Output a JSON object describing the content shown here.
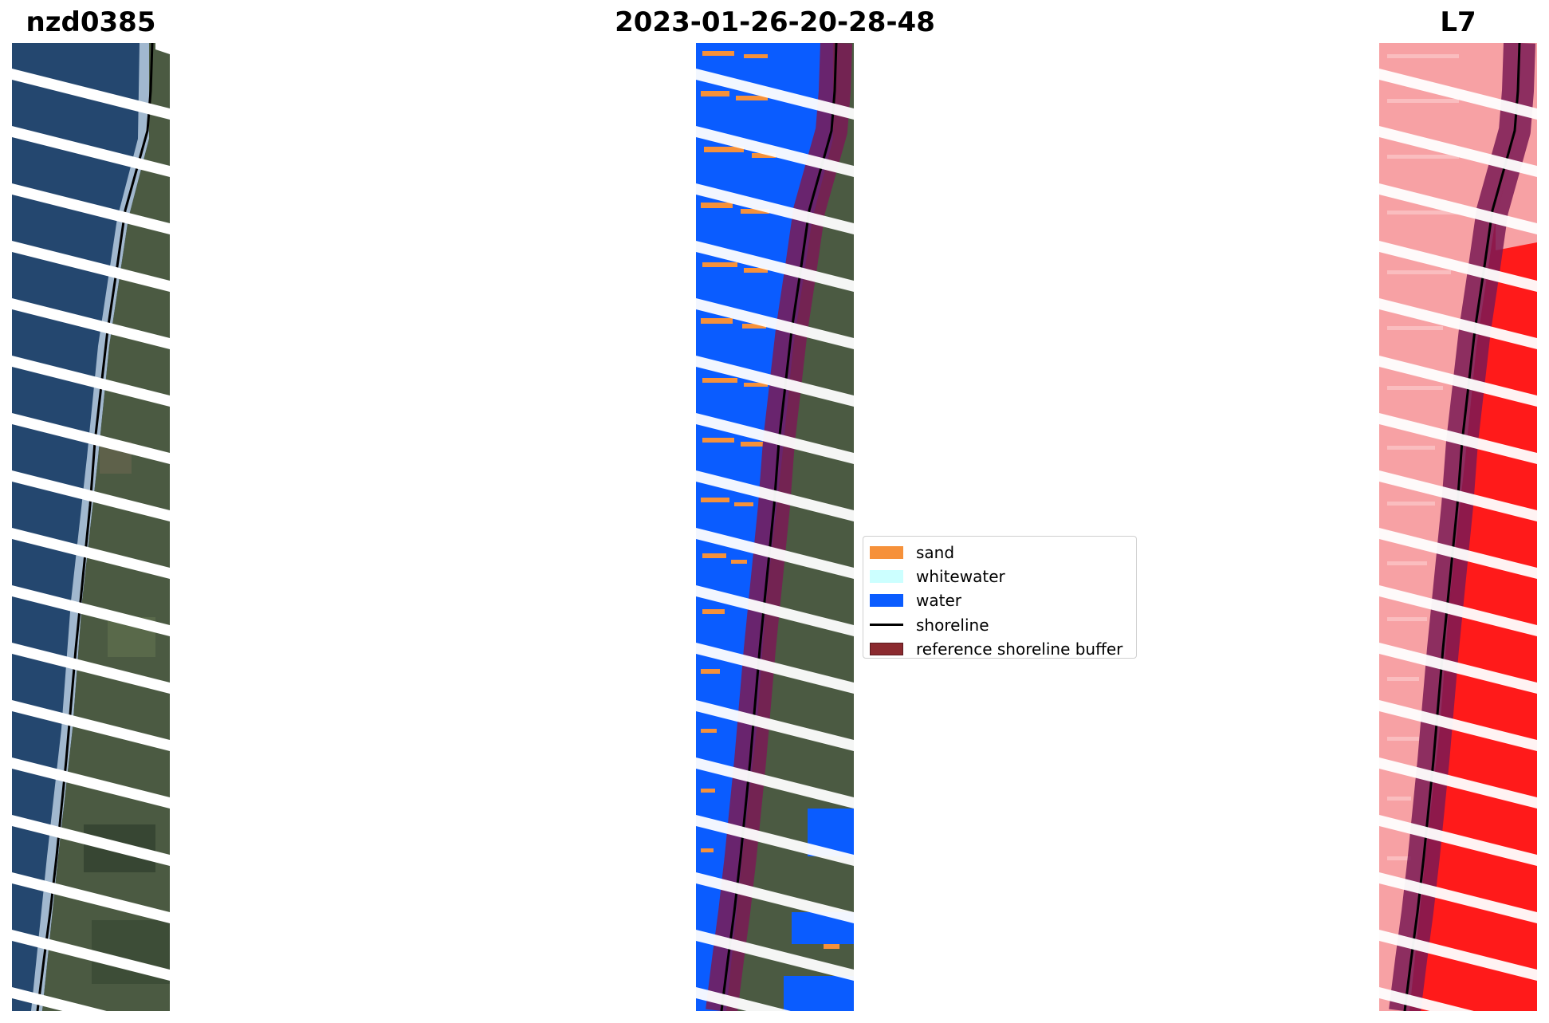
{
  "titles": {
    "left": "nzd0385",
    "center": "2023-01-26-20-28-48",
    "right": "L7"
  },
  "legend": {
    "items": [
      {
        "label": "sand",
        "kind": "patch",
        "color": "#f6913a"
      },
      {
        "label": "whitewater",
        "kind": "patch",
        "color": "#ccffff"
      },
      {
        "label": "water",
        "kind": "patch",
        "color": "#0a5cff"
      },
      {
        "label": "shoreline",
        "kind": "line",
        "color": "#000000"
      },
      {
        "label": "reference shoreline buffer",
        "kind": "patch",
        "color": "#8b2a2f"
      }
    ]
  },
  "colors": {
    "sea": "#23436b",
    "surf": "#a8c4dd",
    "land": "#4f5e45",
    "land_dark": "#2e3b2c",
    "buffer": "#7a1a55",
    "ndwi_light": "#f7a1a4",
    "ndwi_strong": "#ff1414"
  }
}
